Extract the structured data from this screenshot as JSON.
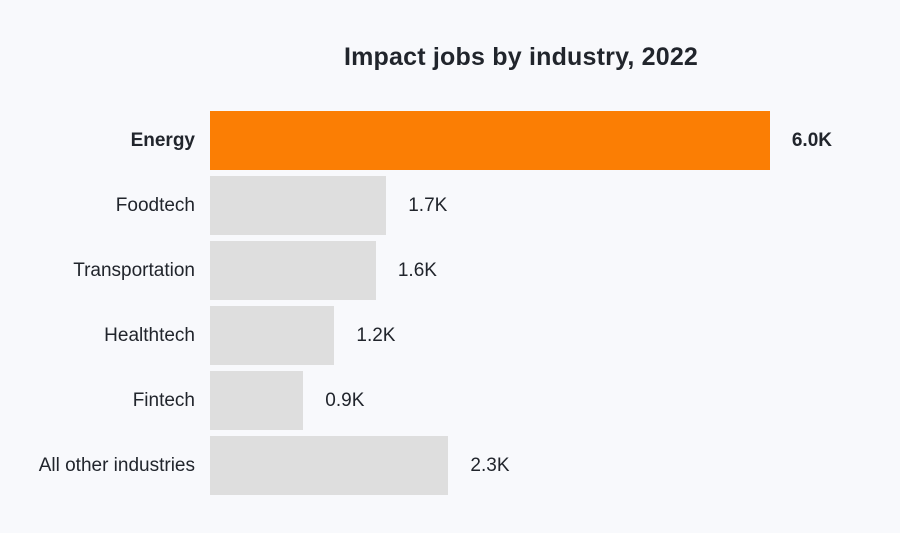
{
  "page": {
    "background_color": "#F8F9FC",
    "text_color": "#21252C"
  },
  "chart_data": {
    "type": "bar",
    "orientation": "horizontal",
    "title": "Impact jobs by industry, 2022",
    "categories": [
      "Energy",
      "Foodtech",
      "Transportation",
      "Healthtech",
      "Fintech",
      "All other industries"
    ],
    "values": [
      6000,
      1700,
      1600,
      1200,
      900,
      2300
    ],
    "value_labels": [
      "6.0K",
      "1.7K",
      "1.6K",
      "1.2K",
      "0.9K",
      "2.3K"
    ],
    "xlabel": "",
    "ylabel": "",
    "xlim": [
      0,
      6000
    ],
    "grid": false,
    "legend": "none",
    "highlight_index": 0,
    "colors": {
      "highlight_bar": "#FB7E04",
      "default_bar": "#DEDEDE"
    }
  }
}
